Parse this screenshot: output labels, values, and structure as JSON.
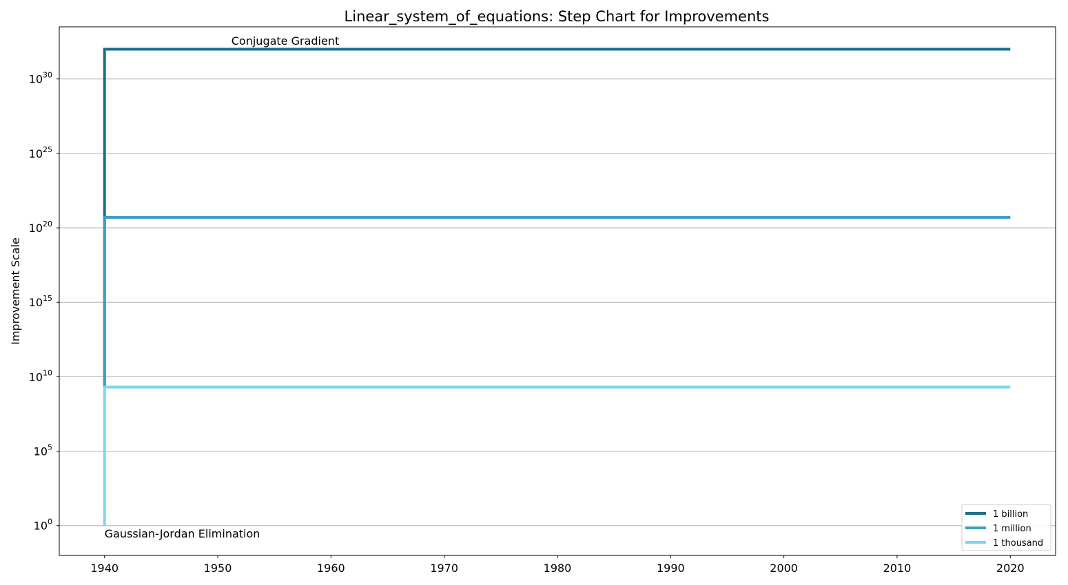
{
  "chart_data": {
    "type": "line",
    "step": true,
    "title": "Linear_system_of_equations: Step Chart for Improvements",
    "xlabel": "",
    "ylabel": "Improvement Scale",
    "y_scale": "log",
    "xlim": [
      1936,
      2024
    ],
    "ylim_log10": [
      -2,
      33.5
    ],
    "x_ticks": [
      1940,
      1950,
      1960,
      1970,
      1980,
      1990,
      2000,
      2010,
      2020
    ],
    "y_ticks": [
      {
        "base": "10",
        "exp": "0",
        "log10": 0
      },
      {
        "base": "10",
        "exp": "5",
        "log10": 5
      },
      {
        "base": "10",
        "exp": "10",
        "log10": 10
      },
      {
        "base": "10",
        "exp": "15",
        "log10": 15
      },
      {
        "base": "10",
        "exp": "20",
        "log10": 20
      },
      {
        "base": "10",
        "exp": "25",
        "log10": 25
      },
      {
        "base": "10",
        "exp": "30",
        "log10": 30
      }
    ],
    "grid": "horizontal",
    "legend_position": "bottom-right",
    "series": [
      {
        "name": "1 billion",
        "color": "#1b6f8e",
        "points": [
          {
            "x": 1940,
            "log10": 9.3
          },
          {
            "x": 1940,
            "log10": 32
          },
          {
            "x": 2020,
            "log10": 32
          }
        ]
      },
      {
        "name": "1 million",
        "color": "#399fc4",
        "points": [
          {
            "x": 1940,
            "log10": 9.3
          },
          {
            "x": 1940,
            "log10": 20.7
          },
          {
            "x": 2020,
            "log10": 20.7
          }
        ]
      },
      {
        "name": "1 thousand",
        "color": "#7fd4f2",
        "points": [
          {
            "x": 1940,
            "log10": 0
          },
          {
            "x": 1940,
            "log10": 9.3
          },
          {
            "x": 2020,
            "log10": 9.3
          }
        ]
      }
    ],
    "annotations": [
      {
        "text": "Conjugate Gradient",
        "x": 1951.2,
        "log10": 32.3
      },
      {
        "text": "Gaussian-Jordan Elimination",
        "x": 1940,
        "log10": -0.8
      }
    ]
  }
}
